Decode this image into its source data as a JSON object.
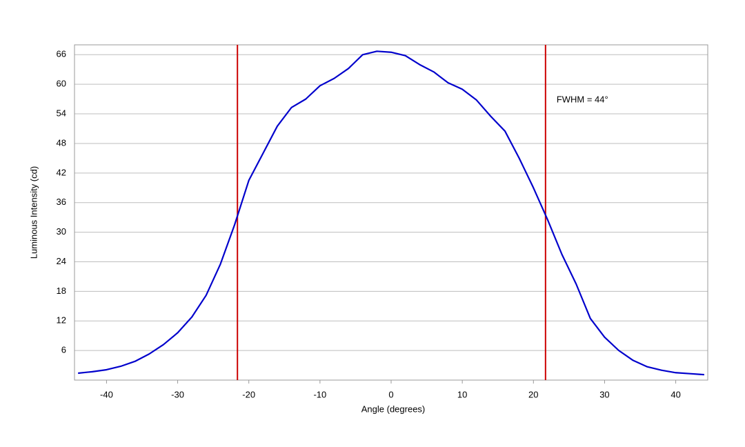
{
  "chart_data": {
    "type": "line",
    "x_label": "Angle (degrees)",
    "y_label": "Luminous Intensity (cd)",
    "annotation": "FWHM = 44°",
    "x": [
      -44,
      -42,
      -40,
      -38,
      -36,
      -34,
      -32,
      -30,
      -28,
      -26,
      -24,
      -22,
      -20,
      -18,
      -16,
      -14,
      -12,
      -10,
      -8,
      -6,
      -4,
      -2,
      0,
      2,
      4,
      6,
      8,
      10,
      12,
      14,
      16,
      18,
      20,
      22,
      24,
      26,
      28,
      30,
      32,
      34,
      36,
      38,
      40,
      42,
      44
    ],
    "series": [
      {
        "color": "#0000cc",
        "values": [
          1.4,
          1.7,
          2.1,
          2.8,
          3.8,
          5.3,
          7.2,
          9.6,
          12.8,
          17.2,
          23.5,
          31.5,
          40.5,
          46,
          51.5,
          55.3,
          57,
          59.7,
          61.2,
          63.2,
          66,
          66.7,
          66.5,
          65.8,
          64,
          62.5,
          60.3,
          59,
          56.8,
          53.5,
          50.5,
          45,
          39,
          32.5,
          25.5,
          19.5,
          12.5,
          8.7,
          6,
          4,
          2.7,
          2,
          1.5,
          1.3,
          1.1
        ]
      }
    ],
    "vlines": [
      -21.6,
      21.7
    ],
    "vline_color": "#cc0000",
    "xlim": [
      -44.5,
      44.5
    ],
    "ylim": [
      0,
      68
    ],
    "xticks": [
      -40,
      -30,
      -20,
      -10,
      0,
      10,
      20,
      30,
      40
    ],
    "yticks": [
      6,
      12,
      18,
      24,
      30,
      36,
      42,
      48,
      54,
      60,
      66
    ],
    "grid": true
  }
}
